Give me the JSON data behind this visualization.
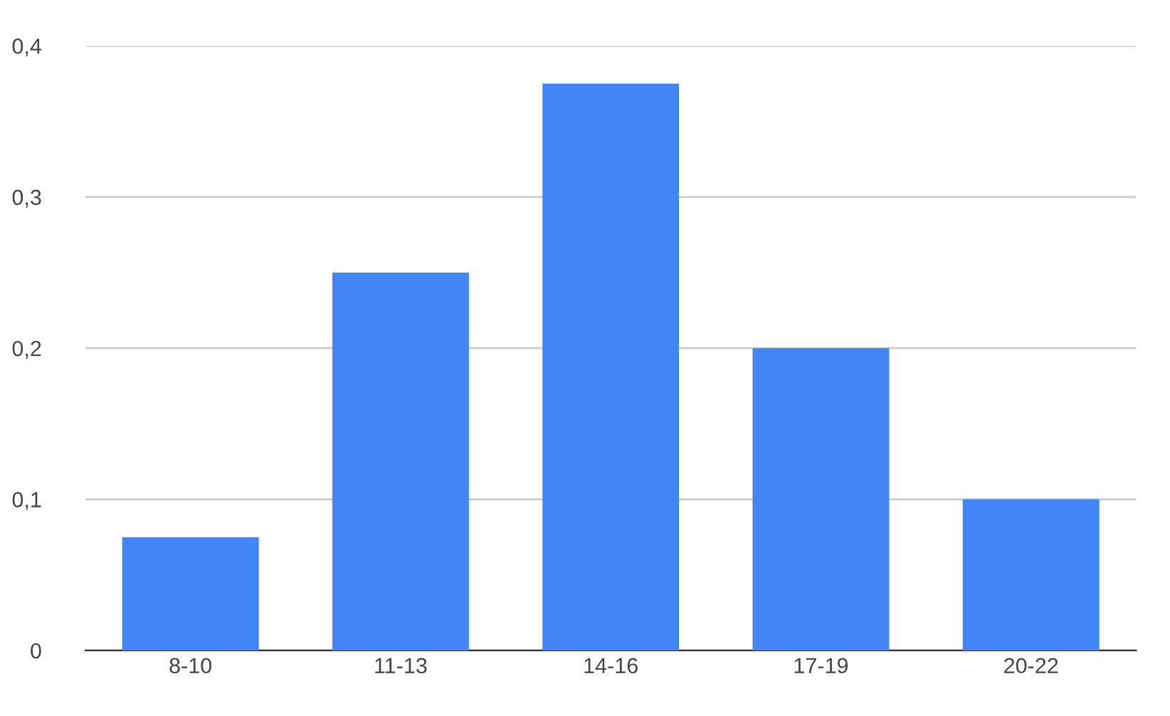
{
  "chart_data": {
    "type": "bar",
    "categories": [
      "8-10",
      "11-13",
      "14-16",
      "17-19",
      "20-22"
    ],
    "series": [
      {
        "color": "#4285f4",
        "values": [
          0.075,
          0.25,
          0.375,
          0.2,
          0.1
        ]
      }
    ],
    "ylim": [
      0,
      0.4
    ],
    "yticks": [
      0,
      {
        "value": 0.1,
        "label": "0,1"
      },
      {
        "value": 0.2,
        "label": "0,2"
      },
      {
        "value": 0.3,
        "label": "0,3"
      },
      {
        "value": 0.4,
        "label": "0,4"
      }
    ],
    "grid": "y",
    "legend": false
  }
}
